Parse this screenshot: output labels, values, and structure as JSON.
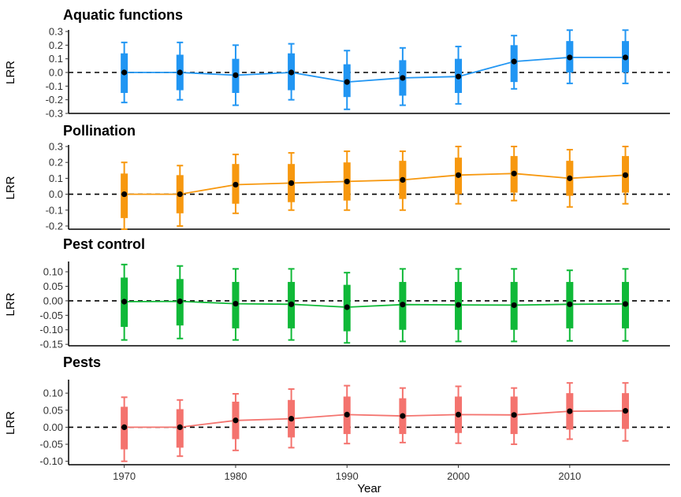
{
  "chart_data": {
    "type": "line",
    "xlabel": "Year",
    "x": [
      1970,
      1975,
      1980,
      1985,
      1990,
      1995,
      2000,
      2005,
      2010,
      2015
    ],
    "xticks": [
      "1970",
      "1980",
      "1990",
      "2000",
      "2010"
    ],
    "xlim": [
      1965,
      2019
    ],
    "panels": [
      {
        "title": "Aquatic functions",
        "ylabel": "LRR",
        "color": "#2196F3",
        "ylim": [
          -0.3,
          0.3
        ],
        "yticks": [
          "-0.3",
          "-0.2",
          "-0.1",
          "0.0",
          "0.1",
          "0.2",
          "0.3"
        ],
        "mean": [
          0.0,
          0.0,
          -0.02,
          0.0,
          -0.07,
          -0.04,
          -0.03,
          0.08,
          0.11,
          0.11
        ],
        "inner_low": [
          -0.15,
          -0.13,
          -0.15,
          -0.13,
          -0.18,
          -0.17,
          -0.15,
          -0.07,
          0.0,
          0.0
        ],
        "inner_high": [
          0.14,
          0.13,
          0.1,
          0.14,
          0.06,
          0.09,
          0.1,
          0.2,
          0.23,
          0.23
        ],
        "outer_low": [
          -0.22,
          -0.2,
          -0.24,
          -0.2,
          -0.27,
          -0.24,
          -0.23,
          -0.12,
          -0.08,
          -0.08
        ],
        "outer_high": [
          0.22,
          0.22,
          0.2,
          0.21,
          0.16,
          0.18,
          0.19,
          0.27,
          0.31,
          0.31
        ]
      },
      {
        "title": "Pollination",
        "ylabel": "LRR",
        "color": "#F7980F",
        "ylim": [
          -0.22,
          0.3
        ],
        "yticks": [
          "-0.2",
          "-0.1",
          "0.0",
          "0.1",
          "0.2",
          "0.3"
        ],
        "mean": [
          0.0,
          0.0,
          0.06,
          0.07,
          0.08,
          0.09,
          0.12,
          0.13,
          0.1,
          0.12
        ],
        "inner_low": [
          -0.15,
          -0.12,
          -0.06,
          -0.05,
          -0.04,
          -0.03,
          0.0,
          0.01,
          -0.01,
          0.01
        ],
        "inner_high": [
          0.13,
          0.12,
          0.19,
          0.19,
          0.2,
          0.21,
          0.23,
          0.24,
          0.21,
          0.24
        ],
        "outer_low": [
          -0.22,
          -0.2,
          -0.12,
          -0.1,
          -0.1,
          -0.1,
          -0.06,
          -0.04,
          -0.08,
          -0.06
        ],
        "outer_high": [
          0.2,
          0.18,
          0.25,
          0.26,
          0.27,
          0.27,
          0.3,
          0.3,
          0.28,
          0.3
        ]
      },
      {
        "title": "Pest control",
        "ylabel": "LRR",
        "color": "#10B938",
        "ylim": [
          -0.155,
          0.13
        ],
        "yticks": [
          "-0.15",
          "-0.10",
          "-0.05",
          "0.00",
          "0.05",
          "0.10"
        ],
        "mean": [
          -0.003,
          -0.002,
          -0.01,
          -0.012,
          -0.022,
          -0.013,
          -0.014,
          -0.015,
          -0.012,
          -0.011
        ],
        "inner_low": [
          -0.09,
          -0.085,
          -0.095,
          -0.095,
          -0.105,
          -0.1,
          -0.1,
          -0.1,
          -0.095,
          -0.095
        ],
        "inner_high": [
          0.08,
          0.075,
          0.065,
          0.065,
          0.055,
          0.065,
          0.065,
          0.065,
          0.065,
          0.065
        ],
        "outer_low": [
          -0.135,
          -0.13,
          -0.135,
          -0.135,
          -0.145,
          -0.14,
          -0.14,
          -0.14,
          -0.138,
          -0.138
        ],
        "outer_high": [
          0.125,
          0.12,
          0.11,
          0.11,
          0.097,
          0.11,
          0.11,
          0.11,
          0.105,
          0.11
        ]
      },
      {
        "title": "Pests",
        "ylabel": "LRR",
        "color": "#F4736E",
        "ylim": [
          -0.11,
          0.135
        ],
        "yticks": [
          "-0.10",
          "-0.05",
          "0.00",
          "0.05",
          "0.10"
        ],
        "mean": [
          0.0,
          0.0,
          0.02,
          0.025,
          0.037,
          0.033,
          0.037,
          0.036,
          0.047,
          0.048
        ],
        "inner_low": [
          -0.065,
          -0.06,
          -0.035,
          -0.03,
          -0.02,
          -0.02,
          -0.017,
          -0.02,
          -0.007,
          -0.005
        ],
        "inner_high": [
          0.06,
          0.053,
          0.075,
          0.08,
          0.09,
          0.085,
          0.09,
          0.09,
          0.1,
          0.1
        ],
        "outer_low": [
          -0.1,
          -0.085,
          -0.068,
          -0.06,
          -0.048,
          -0.045,
          -0.047,
          -0.05,
          -0.035,
          -0.04
        ],
        "outer_high": [
          0.088,
          0.08,
          0.098,
          0.112,
          0.122,
          0.115,
          0.12,
          0.115,
          0.13,
          0.13
        ]
      }
    ]
  }
}
